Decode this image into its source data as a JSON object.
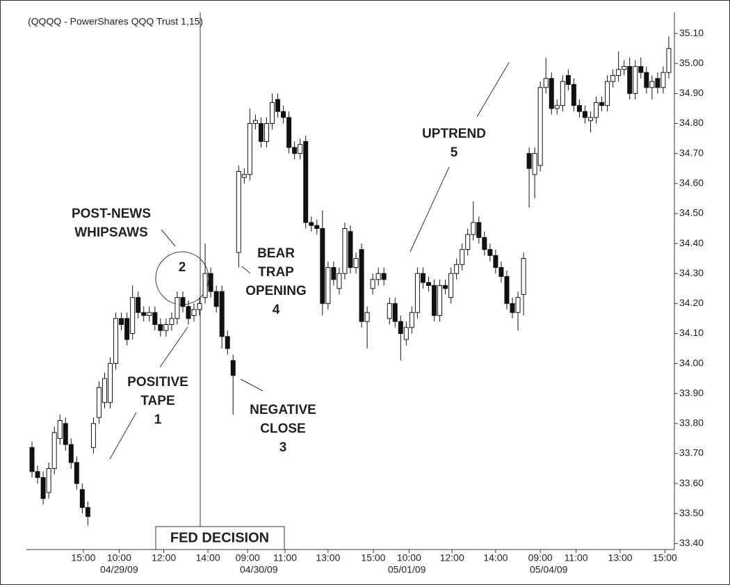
{
  "chart_data": {
    "type": "candlestick",
    "title": "(QQQQ - PowerShares QQQ Trust 1,15)",
    "open": [
      33.72,
      33.64,
      33.62,
      33.57,
      33.65,
      33.75,
      33.8,
      33.73,
      33.67,
      33.58,
      33.52,
      33.72,
      33.82,
      33.87,
      33.87,
      34.0,
      34.15,
      34.15,
      34.1,
      34.22,
      34.17,
      34.16,
      34.17,
      34.13,
      34.11,
      34.13,
      34.15,
      34.22,
      34.19,
      34.16,
      34.18,
      34.22,
      34.3,
      34.24,
      34.24,
      34.09,
      34.01,
      34.37,
      34.62,
      34.63,
      34.8,
      34.8,
      34.74,
      34.8,
      34.88,
      34.84,
      34.82,
      34.72,
      34.7,
      34.74,
      34.47,
      34.46,
      34.45,
      34.2,
      34.32,
      34.25,
      34.3,
      34.44,
      34.32,
      34.38,
      34.14,
      34.25,
      34.28,
      34.3,
      34.15,
      34.2,
      34.14,
      34.08,
      34.12,
      34.17,
      34.3,
      34.27,
      34.26,
      34.16,
      34.26,
      34.22,
      34.3,
      34.33,
      34.38,
      34.43,
      34.47,
      34.42,
      34.38,
      34.36,
      34.32,
      34.29,
      34.2,
      34.17,
      34.23,
      34.7,
      34.63,
      34.66,
      34.92,
      34.95,
      34.85,
      34.86,
      34.96,
      34.93,
      34.86,
      34.84,
      34.81,
      34.82,
      34.87,
      34.86,
      34.94,
      34.96,
      34.98,
      34.99,
      34.9,
      34.99,
      34.97,
      34.92,
      34.95,
      34.92,
      34.97
    ],
    "high": [
      33.74,
      33.66,
      33.64,
      33.67,
      33.79,
      33.83,
      33.82,
      33.75,
      33.69,
      33.6,
      33.54,
      33.82,
      33.94,
      33.97,
      34.02,
      34.17,
      34.17,
      34.17,
      34.26,
      34.24,
      34.19,
      34.19,
      34.19,
      34.15,
      34.15,
      34.17,
      34.24,
      34.24,
      34.21,
      34.2,
      34.22,
      34.4,
      34.32,
      34.26,
      34.26,
      34.11,
      34.03,
      34.66,
      34.65,
      34.85,
      34.83,
      34.82,
      34.82,
      34.9,
      34.9,
      34.86,
      34.84,
      34.74,
      34.75,
      34.76,
      34.49,
      34.48,
      34.51,
      34.34,
      34.34,
      34.32,
      34.47,
      34.46,
      34.37,
      34.4,
      34.19,
      34.3,
      34.32,
      34.32,
      34.22,
      34.22,
      34.16,
      34.14,
      34.19,
      34.32,
      34.32,
      34.29,
      34.28,
      34.28,
      34.28,
      34.32,
      34.35,
      34.4,
      34.45,
      34.54,
      34.49,
      34.44,
      34.4,
      34.38,
      34.34,
      34.31,
      34.22,
      34.24,
      34.37,
      34.72,
      34.72,
      34.94,
      35.02,
      34.97,
      34.88,
      34.96,
      34.98,
      34.95,
      34.88,
      34.86,
      34.84,
      34.89,
      34.89,
      34.96,
      34.98,
      35.04,
      35.01,
      35.02,
      35.01,
      35.02,
      34.99,
      34.96,
      34.97,
      34.99,
      35.09
    ],
    "low": [
      33.62,
      33.6,
      33.53,
      33.55,
      33.63,
      33.73,
      33.71,
      33.65,
      33.58,
      33.5,
      33.46,
      33.7,
      33.8,
      33.85,
      33.85,
      33.98,
      34.11,
      34.06,
      34.08,
      34.15,
      34.14,
      34.14,
      34.11,
      34.09,
      34.09,
      34.11,
      34.13,
      34.17,
      34.13,
      34.14,
      34.16,
      34.2,
      34.22,
      34.17,
      34.05,
      34.03,
      33.83,
      34.32,
      34.6,
      34.61,
      34.78,
      34.72,
      34.72,
      34.78,
      34.82,
      34.8,
      34.7,
      34.68,
      34.68,
      34.45,
      34.44,
      34.43,
      34.16,
      34.18,
      34.26,
      34.23,
      34.28,
      34.3,
      34.3,
      34.12,
      34.05,
      34.23,
      34.26,
      34.26,
      34.13,
      34.12,
      34.01,
      34.06,
      34.1,
      34.15,
      34.25,
      34.24,
      34.14,
      34.14,
      34.23,
      34.2,
      34.28,
      34.31,
      34.36,
      34.41,
      34.4,
      34.36,
      34.34,
      34.3,
      34.27,
      34.18,
      34.15,
      34.11,
      34.16,
      34.52,
      34.55,
      34.64,
      34.9,
      34.83,
      34.83,
      34.84,
      34.91,
      34.84,
      34.82,
      34.8,
      34.77,
      34.8,
      34.84,
      34.84,
      34.92,
      34.94,
      34.96,
      34.88,
      34.88,
      34.95,
      34.9,
      34.88,
      34.9,
      34.9,
      34.95
    ],
    "close": [
      33.64,
      33.62,
      33.55,
      33.65,
      33.77,
      33.81,
      33.73,
      33.67,
      33.6,
      33.52,
      33.49,
      33.8,
      33.92,
      33.95,
      34.0,
      34.15,
      34.13,
      34.08,
      34.22,
      34.17,
      34.16,
      34.17,
      34.13,
      34.11,
      34.13,
      34.15,
      34.22,
      34.19,
      34.15,
      34.18,
      34.2,
      34.3,
      34.24,
      34.19,
      34.09,
      34.05,
      33.96,
      34.64,
      34.63,
      34.8,
      34.81,
      34.74,
      34.8,
      34.87,
      34.84,
      34.82,
      34.72,
      34.7,
      34.73,
      34.47,
      34.46,
      34.45,
      34.2,
      34.32,
      34.28,
      34.3,
      34.45,
      34.32,
      34.35,
      34.14,
      34.17,
      34.28,
      34.3,
      34.28,
      34.2,
      34.14,
      34.1,
      34.12,
      34.17,
      34.3,
      34.27,
      34.26,
      34.16,
      34.26,
      34.25,
      34.3,
      34.33,
      34.38,
      34.43,
      34.47,
      34.42,
      34.38,
      34.36,
      34.32,
      34.29,
      34.2,
      34.17,
      34.22,
      34.35,
      34.65,
      34.7,
      34.92,
      34.95,
      34.85,
      34.86,
      34.94,
      34.93,
      34.86,
      34.84,
      34.82,
      34.82,
      34.87,
      34.86,
      34.94,
      34.96,
      34.98,
      34.99,
      34.9,
      34.99,
      34.97,
      34.92,
      34.94,
      34.92,
      34.97,
      35.05
    ],
    "up_color": "#ffffff",
    "down_color": "#111111",
    "xlim": [
      -1,
      115
    ],
    "ylim": [
      33.38,
      35.2
    ],
    "yticks": [
      {
        "value": 33.4,
        "label": "33.40"
      },
      {
        "value": 33.5,
        "label": "33.50"
      },
      {
        "value": 33.6,
        "label": "33.60"
      },
      {
        "value": 33.7,
        "label": "33.70"
      },
      {
        "value": 33.8,
        "label": "33.80"
      },
      {
        "value": 33.9,
        "label": "33.90"
      },
      {
        "value": 34.0,
        "label": "34.00"
      },
      {
        "value": 34.1,
        "label": "34.10"
      },
      {
        "value": 34.2,
        "label": "34.20"
      },
      {
        "value": 34.3,
        "label": "34.30"
      },
      {
        "value": 34.4,
        "label": "34.40"
      },
      {
        "value": 34.5,
        "label": "34.50"
      },
      {
        "value": 34.6,
        "label": "34.60"
      },
      {
        "value": 34.7,
        "label": "34.70"
      },
      {
        "value": 34.8,
        "label": "34.80"
      },
      {
        "value": 34.9,
        "label": "34.90"
      },
      {
        "value": 35.0,
        "label": "35.00"
      },
      {
        "value": 35.1,
        "label": "35.10"
      }
    ],
    "xticks": [
      {
        "value": 9.2,
        "label": "15:00"
      },
      {
        "value": 15.6,
        "label": "10:00"
      },
      {
        "value": 23.6,
        "label": "12:00"
      },
      {
        "value": 31.5,
        "label": "14:00"
      },
      {
        "value": 38.6,
        "label": "09:00"
      },
      {
        "value": 45.3,
        "label": "11:00"
      },
      {
        "value": 53.0,
        "label": "13:00"
      },
      {
        "value": 61.1,
        "label": "15:00"
      },
      {
        "value": 67.5,
        "label": "10:00"
      },
      {
        "value": 75.2,
        "label": "12:00"
      },
      {
        "value": 83.0,
        "label": "14:00"
      },
      {
        "value": 91.0,
        "label": "09:00"
      },
      {
        "value": 97.4,
        "label": "11:00"
      },
      {
        "value": 105.3,
        "label": "13:00"
      },
      {
        "value": 113.3,
        "label": "15:00"
      }
    ],
    "date_labels": [
      {
        "value": 15.6,
        "label": "04/29/09"
      },
      {
        "value": 40.6,
        "label": "04/30/09"
      },
      {
        "value": 67.1,
        "label": "05/01/09"
      },
      {
        "value": 92.5,
        "label": "05/04/09"
      }
    ],
    "annotations": [
      {
        "lines": [
          "POST-NEWS",
          "WHIPSAWS"
        ]
      },
      {
        "lines": [
          "2"
        ]
      },
      {
        "lines": [
          "POSITIVE",
          "TAPE",
          "1"
        ]
      },
      {
        "lines": [
          "NEGATIVE",
          "CLOSE",
          "3"
        ]
      },
      {
        "lines": [
          "BEAR",
          "TRAP",
          "OPENING",
          "4"
        ]
      },
      {
        "lines": [
          "UPTREND",
          "5"
        ]
      }
    ],
    "event_label": "FED DECISION"
  }
}
